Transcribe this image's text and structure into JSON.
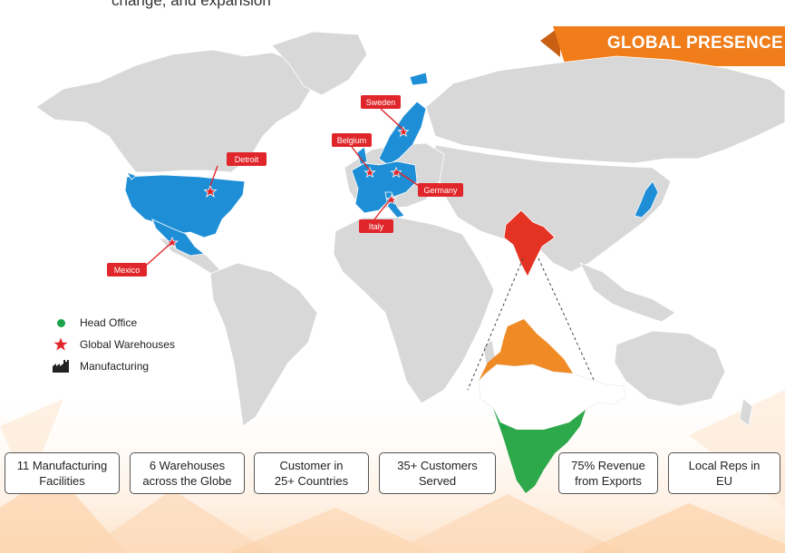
{
  "intro_text": "change, and expansion",
  "banner": {
    "title": "GLOBAL PRESENCE"
  },
  "locations": {
    "sweden": "Sweden",
    "detroit": "Detroit",
    "belgium": "Belgium",
    "germany": "Germany",
    "italy": "Italy",
    "mexico": "Mexico"
  },
  "legend": {
    "head_office": "Head Office",
    "global_warehouses": "Global Warehouses",
    "manufacturing": "Manufacturing"
  },
  "stats": [
    {
      "text": "11 Manufacturing\nFacilities"
    },
    {
      "text": "6 Warehouses\nacross the Globe"
    },
    {
      "text": "Customer in\n25+ Countries"
    },
    {
      "text": "35+ Customers\nServed"
    },
    {
      "text": "75% Revenue\nfrom Exports"
    },
    {
      "text": "Local Reps in\nEU"
    }
  ],
  "colors": {
    "accent_orange": "#f07d1a",
    "highlight_blue": "#1e8fd6",
    "india_red": "#e53323",
    "label_red": "#e0262a",
    "land_gray": "#d8d8d8",
    "saffron": "#f08a24",
    "green": "#2da84a"
  }
}
